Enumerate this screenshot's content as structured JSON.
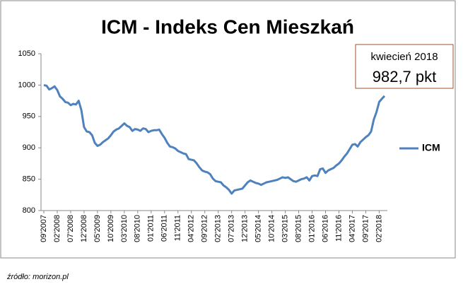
{
  "chart_data": {
    "type": "line",
    "title": "ICM - Indeks Cen Mieszkań",
    "categories": [
      "09'2007",
      null,
      null,
      null,
      null,
      "02'2008",
      null,
      null,
      null,
      null,
      "07'2008",
      null,
      null,
      null,
      null,
      "12'2008",
      null,
      null,
      null,
      null,
      "05'2009",
      null,
      null,
      null,
      null,
      "10'2009",
      null,
      null,
      null,
      null,
      "03'2010",
      null,
      null,
      null,
      null,
      "08'2010",
      null,
      null,
      null,
      null,
      "01'2011",
      null,
      null,
      null,
      null,
      "06'2011",
      null,
      null,
      null,
      null,
      "11'2011",
      null,
      null,
      null,
      null,
      "04'2012",
      null,
      null,
      null,
      null,
      "09'2012",
      null,
      null,
      null,
      null,
      "02'2013",
      null,
      null,
      null,
      null,
      "07'2013",
      null,
      null,
      null,
      null,
      "12'2013",
      null,
      null,
      null,
      null,
      "05'2014",
      null,
      null,
      null,
      null,
      "10'2014",
      null,
      null,
      null,
      null,
      "03'2015",
      null,
      null,
      null,
      null,
      "08'2015",
      null,
      null,
      null,
      null,
      "01'2016",
      null,
      null,
      null,
      null,
      "06'2016",
      null,
      null,
      null,
      null,
      "11'2016",
      null,
      null,
      null,
      null,
      "04'2017",
      null,
      null,
      null,
      null,
      "09'2017",
      null,
      null,
      null,
      null,
      "02'2018",
      null,
      null
    ],
    "series": [
      {
        "name": "ICM",
        "color": "#4f81bd",
        "values": [
          1000,
          999,
          993,
          995,
          998,
          992,
          982,
          978,
          973,
          972,
          968,
          970,
          969,
          975,
          960,
          933,
          926,
          925,
          920,
          908,
          903,
          905,
          909,
          912,
          915,
          920,
          926,
          929,
          931,
          935,
          939,
          935,
          933,
          927,
          930,
          929,
          927,
          931,
          930,
          925,
          927,
          928,
          928,
          929,
          922,
          916,
          908,
          902,
          901,
          899,
          895,
          893,
          891,
          890,
          882,
          881,
          880,
          875,
          869,
          864,
          862,
          861,
          858,
          851,
          847,
          846,
          845,
          840,
          837,
          833,
          827,
          832,
          833,
          834,
          835,
          840,
          845,
          848,
          846,
          844,
          843,
          841,
          843,
          845,
          846,
          847,
          848,
          849,
          851,
          853,
          852,
          853,
          850,
          847,
          846,
          848,
          850,
          851,
          853,
          848,
          855,
          856,
          855,
          866,
          867,
          860,
          864,
          866,
          868,
          872,
          875,
          880,
          886,
          891,
          898,
          905,
          906,
          902,
          909,
          913,
          917,
          920,
          926,
          945,
          957,
          973,
          978,
          982.7
        ]
      }
    ],
    "ylim": [
      800,
      1050
    ],
    "yticks": [
      800,
      850,
      900,
      950,
      1000,
      1050
    ],
    "grid": false,
    "legend": "right",
    "annotation": {
      "title": "kwiecień 2018",
      "text": "982,7 pkt"
    },
    "source": "źródło: morizon.pl"
  }
}
